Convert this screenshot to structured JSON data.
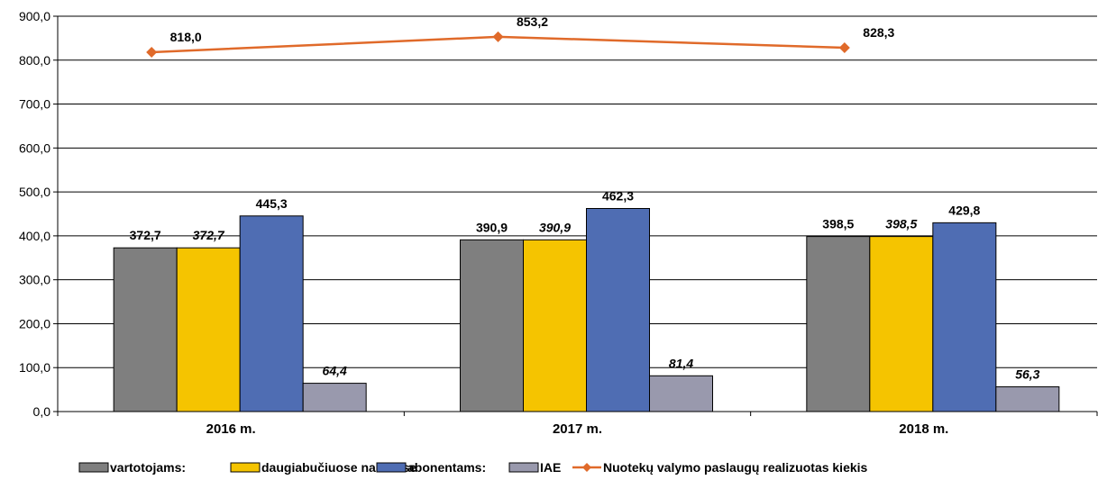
{
  "chart_data": {
    "type": "bar",
    "categories": [
      "2016 m.",
      "2017 m.",
      "2018 m."
    ],
    "ylim": [
      0,
      900
    ],
    "y_ticks": [
      "0,0",
      "100,0",
      "200,0",
      "300,0",
      "400,0",
      "500,0",
      "600,0",
      "700,0",
      "800,0",
      "900,0"
    ],
    "grid": true,
    "legend_position": "bottom",
    "series": [
      {
        "name": "vartotojams:",
        "kind": "bar",
        "color": "#7f7f7f",
        "values": [
          372.7,
          390.9,
          398.5
        ],
        "labels": [
          "372,7",
          "390,9",
          "398,5"
        ],
        "label_italic": false
      },
      {
        "name": "daugiabučiuose namuose",
        "kind": "bar",
        "color": "#f5c400",
        "values": [
          372.7,
          390.9,
          398.5
        ],
        "labels": [
          "372,7",
          "390,9",
          "398,5"
        ],
        "label_italic": true
      },
      {
        "name": "abonentams:",
        "kind": "bar",
        "color": "#4f6db3",
        "values": [
          445.3,
          462.3,
          429.8
        ],
        "labels": [
          "445,3",
          "462,3",
          "429,8"
        ],
        "label_italic": false
      },
      {
        "name": "IAE",
        "kind": "bar",
        "color": "#9999ad",
        "values": [
          64.4,
          81.4,
          56.3
        ],
        "labels": [
          "64,4",
          "81,4",
          "56,3"
        ],
        "label_italic": true
      },
      {
        "name": "Nuotekų valymo paslaugų realizuotas kiekis",
        "kind": "line",
        "color": "#e06a2a",
        "values": [
          818.0,
          853.2,
          828.3
        ],
        "labels": [
          "818,0",
          "853,2",
          "828,3"
        ],
        "label_italic": false
      }
    ]
  }
}
